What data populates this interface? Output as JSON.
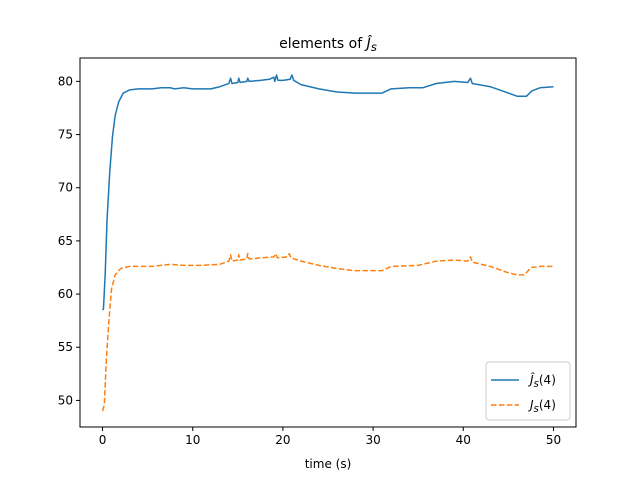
{
  "chart_data": {
    "type": "line",
    "title": "elements of Ĵs",
    "xlabel": "time (s)",
    "ylabel": "",
    "xlim": [
      -2.5,
      52.5
    ],
    "ylim": [
      47.5,
      82.2
    ],
    "xticks": [
      0,
      10,
      20,
      30,
      40,
      50
    ],
    "yticks": [
      50,
      55,
      60,
      65,
      70,
      75,
      80
    ],
    "grid": false,
    "legend_position": "lower-right",
    "series": [
      {
        "name": "Ĵs(4)",
        "color": "#1f77b4",
        "style": "solid",
        "points": [
          [
            0.0,
            58.5
          ],
          [
            0.1,
            58.6
          ],
          [
            0.3,
            62.0
          ],
          [
            0.5,
            67.0
          ],
          [
            0.8,
            71.5
          ],
          [
            1.1,
            74.8
          ],
          [
            1.4,
            76.8
          ],
          [
            1.8,
            78.1
          ],
          [
            2.3,
            78.9
          ],
          [
            3.0,
            79.2
          ],
          [
            4.0,
            79.3
          ],
          [
            5.5,
            79.3
          ],
          [
            6.5,
            79.4
          ],
          [
            7.5,
            79.4
          ],
          [
            8.0,
            79.3
          ],
          [
            9.0,
            79.4
          ],
          [
            10.0,
            79.3
          ],
          [
            11.0,
            79.3
          ],
          [
            12.0,
            79.3
          ],
          [
            13.0,
            79.5
          ],
          [
            14.0,
            79.8
          ],
          [
            14.2,
            80.3
          ],
          [
            14.35,
            79.8
          ],
          [
            15.0,
            79.9
          ],
          [
            15.1,
            80.3
          ],
          [
            15.25,
            79.9
          ],
          [
            16.0,
            80.0
          ],
          [
            16.1,
            80.3
          ],
          [
            16.25,
            80.0
          ],
          [
            17.5,
            80.1
          ],
          [
            18.5,
            80.2
          ],
          [
            19.0,
            80.4
          ],
          [
            19.1,
            80.0
          ],
          [
            19.3,
            80.6
          ],
          [
            19.45,
            80.1
          ],
          [
            20.0,
            80.1
          ],
          [
            20.8,
            80.2
          ],
          [
            21.0,
            80.6
          ],
          [
            21.2,
            80.1
          ],
          [
            22.0,
            79.7
          ],
          [
            24.0,
            79.3
          ],
          [
            26.0,
            79.0
          ],
          [
            28.0,
            78.9
          ],
          [
            29.0,
            78.9
          ],
          [
            30.0,
            78.9
          ],
          [
            31.0,
            78.9
          ],
          [
            32.0,
            79.3
          ],
          [
            34.0,
            79.4
          ],
          [
            35.5,
            79.4
          ],
          [
            37.0,
            79.8
          ],
          [
            39.0,
            80.0
          ],
          [
            40.5,
            79.9
          ],
          [
            40.8,
            80.3
          ],
          [
            41.0,
            79.8
          ],
          [
            43.0,
            79.5
          ],
          [
            45.0,
            78.9
          ],
          [
            46.0,
            78.6
          ],
          [
            46.6,
            78.6
          ],
          [
            47.0,
            78.6
          ],
          [
            47.6,
            79.1
          ],
          [
            48.5,
            79.4
          ],
          [
            50.0,
            79.5
          ]
        ]
      },
      {
        "name": "Js(4)",
        "color": "#ff7f0e",
        "style": "dashed",
        "points": [
          [
            0.0,
            49.0
          ],
          [
            0.2,
            49.6
          ],
          [
            0.4,
            53.5
          ],
          [
            0.7,
            57.5
          ],
          [
            1.0,
            60.5
          ],
          [
            1.4,
            61.8
          ],
          [
            2.0,
            62.4
          ],
          [
            3.0,
            62.6
          ],
          [
            4.0,
            62.6
          ],
          [
            5.5,
            62.6
          ],
          [
            7.5,
            62.8
          ],
          [
            9.0,
            62.7
          ],
          [
            11.0,
            62.7
          ],
          [
            13.0,
            62.8
          ],
          [
            14.0,
            63.1
          ],
          [
            14.2,
            63.7
          ],
          [
            14.35,
            63.1
          ],
          [
            15.0,
            63.2
          ],
          [
            15.1,
            63.7
          ],
          [
            15.25,
            63.2
          ],
          [
            16.0,
            63.3
          ],
          [
            16.1,
            63.8
          ],
          [
            16.25,
            63.3
          ],
          [
            17.5,
            63.4
          ],
          [
            19.0,
            63.5
          ],
          [
            19.2,
            63.8
          ],
          [
            19.4,
            63.4
          ],
          [
            20.5,
            63.5
          ],
          [
            20.7,
            63.8
          ],
          [
            20.9,
            63.4
          ],
          [
            22.0,
            63.1
          ],
          [
            24.0,
            62.7
          ],
          [
            26.0,
            62.4
          ],
          [
            28.0,
            62.2
          ],
          [
            30.0,
            62.2
          ],
          [
            31.0,
            62.2
          ],
          [
            32.0,
            62.6
          ],
          [
            35.0,
            62.7
          ],
          [
            37.0,
            63.1
          ],
          [
            39.0,
            63.2
          ],
          [
            40.5,
            63.1
          ],
          [
            40.8,
            63.5
          ],
          [
            41.0,
            63.0
          ],
          [
            43.0,
            62.6
          ],
          [
            45.0,
            62.0
          ],
          [
            46.0,
            61.8
          ],
          [
            46.8,
            61.8
          ],
          [
            47.5,
            62.5
          ],
          [
            48.5,
            62.6
          ],
          [
            50.0,
            62.6
          ]
        ]
      }
    ]
  }
}
